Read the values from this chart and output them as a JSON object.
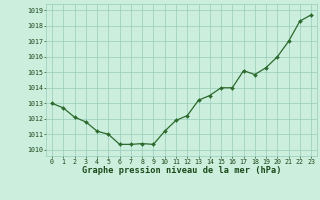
{
  "x": [
    0,
    1,
    2,
    3,
    4,
    5,
    6,
    7,
    8,
    9,
    10,
    11,
    12,
    13,
    14,
    15,
    16,
    17,
    18,
    19,
    20,
    21,
    22,
    23
  ],
  "y": [
    1013.0,
    1012.7,
    1012.1,
    1011.8,
    1011.2,
    1011.0,
    1010.35,
    1010.35,
    1010.4,
    1010.35,
    1011.2,
    1011.9,
    1012.2,
    1013.2,
    1013.5,
    1014.0,
    1014.0,
    1015.1,
    1014.85,
    1015.3,
    1016.0,
    1017.0,
    1018.3,
    1018.7
  ],
  "line_color": "#2d6a2d",
  "marker_color": "#2d6a2d",
  "bg_plot": "#cceedd",
  "bg_fig": "#cceedd",
  "grid_color": "#99ccbb",
  "xlabel": "Graphe pression niveau de la mer (hPa)",
  "xlabel_color": "#1a4a1a",
  "yticks": [
    1010,
    1011,
    1012,
    1013,
    1014,
    1015,
    1016,
    1017,
    1018,
    1019
  ],
  "xticks": [
    0,
    1,
    2,
    3,
    4,
    5,
    6,
    7,
    8,
    9,
    10,
    11,
    12,
    13,
    14,
    15,
    16,
    17,
    18,
    19,
    20,
    21,
    22,
    23
  ],
  "ylim": [
    1009.6,
    1019.4
  ],
  "xlim": [
    -0.5,
    23.5
  ]
}
